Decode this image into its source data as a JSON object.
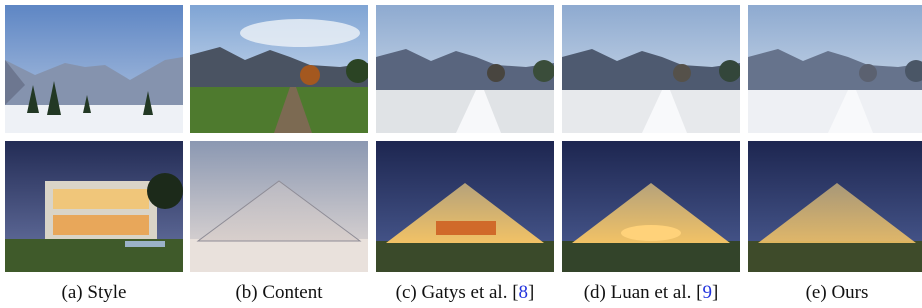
{
  "figure": {
    "columns": [
      {
        "caption": {
          "text": "(a) Style"
        }
      },
      {
        "caption": {
          "text": "(b) Content"
        }
      },
      {
        "caption": {
          "text": "(c) Gatys et al. [",
          "ref": "8",
          "close": "]"
        }
      },
      {
        "caption": {
          "text": "(d) Luan et al. [",
          "ref": "9",
          "close": "]"
        }
      },
      {
        "caption": {
          "text": "(e) Ours"
        }
      }
    ]
  }
}
